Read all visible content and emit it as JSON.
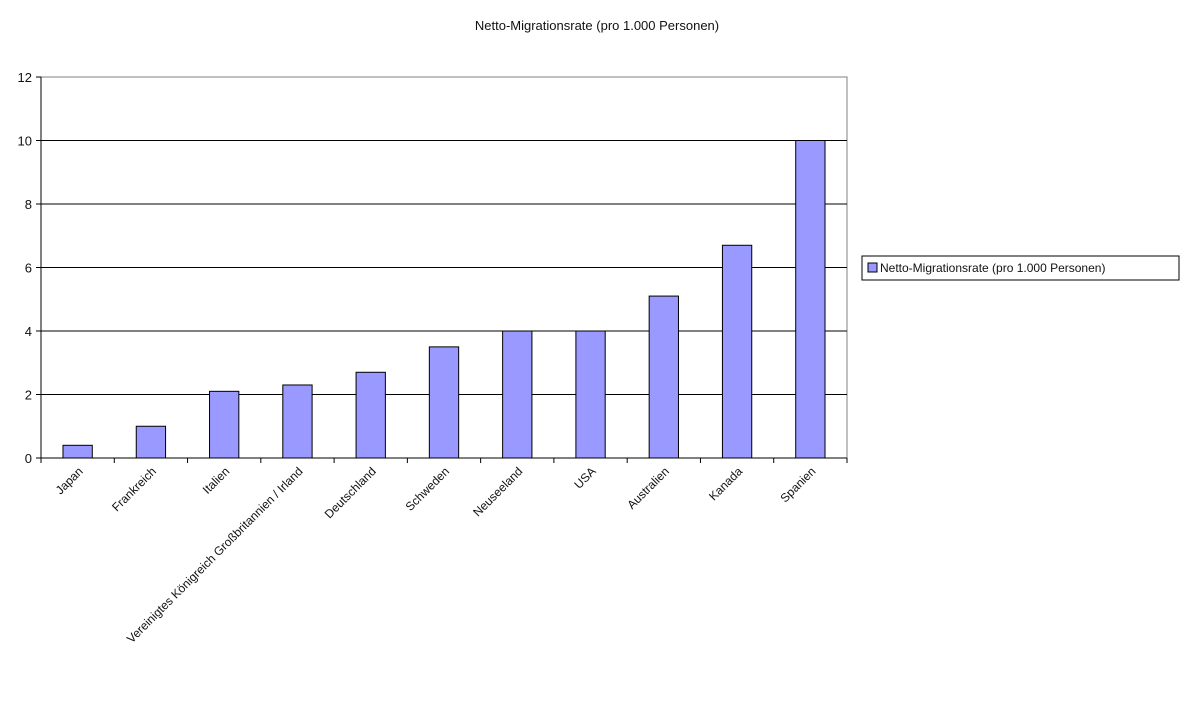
{
  "chart_data": {
    "type": "bar",
    "title": "Netto-Migrationsrate (pro 1.000 Personen)",
    "xlabel": "",
    "ylabel": "",
    "categories": [
      "Japan",
      "Frankreich",
      "Italien",
      "Vereinigtes Königreich Großbritannien / Irland",
      "Deutschland",
      "Schweden",
      "Neuseeland",
      "USA",
      "Australien",
      "Kanada",
      "Spanien"
    ],
    "series": [
      {
        "name": "Netto-Migrationsrate (pro 1.000 Personen)",
        "values": [
          0.4,
          1.0,
          2.1,
          2.3,
          2.7,
          3.5,
          4.0,
          4.0,
          5.1,
          6.7,
          10.0
        ],
        "color": "#9999ff"
      }
    ],
    "ylim": [
      0,
      12
    ],
    "yticks": [
      "0",
      "2",
      "4",
      "6",
      "8",
      "10",
      "12"
    ],
    "grid": true,
    "legend_position": "right"
  }
}
